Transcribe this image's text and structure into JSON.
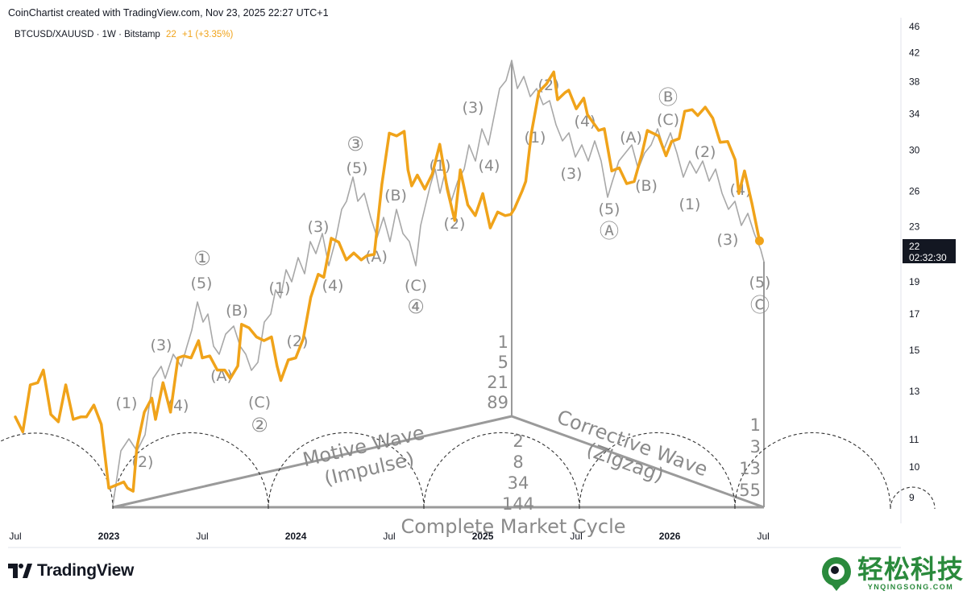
{
  "header": {
    "attribution": "CoinChartist created with TradingView.com, Nov 23, 2025 22:27 UTC+1",
    "symbol": "BTCUSD/XAUUSD · 1W · Bitstamp",
    "last_value": "22",
    "change": "+1 (+3.35%)"
  },
  "price_badge": {
    "value": "22",
    "countdown": "02:32:30"
  },
  "brand": {
    "name": "TradingView"
  },
  "watermark": {
    "cn": "轻松科技",
    "en": "YNQINGSONG.COM"
  },
  "colors": {
    "series": "#f0a31a",
    "overlay": "#9a9a9a",
    "badge": "#131722",
    "watermark": "#2a8a3c"
  },
  "chart_data": {
    "type": "line",
    "title": "BTCUSD/XAUUSD · 1W · Bitstamp",
    "xlabel": "",
    "ylabel": "",
    "y_scale": "log",
    "ylim": [
      8.4,
      47
    ],
    "x_range": [
      "2022-05",
      "2026-11"
    ],
    "y_ticks": [
      46,
      42,
      38,
      34,
      30,
      26,
      23,
      19,
      17,
      15,
      13,
      11,
      10,
      9
    ],
    "x_ticks": [
      {
        "label": "Jul",
        "t": 2022.5,
        "bold": false
      },
      {
        "label": "2023",
        "t": 2023.0,
        "bold": true
      },
      {
        "label": "Jul",
        "t": 2023.5,
        "bold": false
      },
      {
        "label": "2024",
        "t": 2024.0,
        "bold": true
      },
      {
        "label": "Jul",
        "t": 2024.5,
        "bold": false
      },
      {
        "label": "2025",
        "t": 2025.0,
        "bold": true
      },
      {
        "label": "Jul",
        "t": 2025.5,
        "bold": false
      },
      {
        "label": "2026",
        "t": 2026.0,
        "bold": true
      },
      {
        "label": "Jul",
        "t": 2026.5,
        "bold": false
      }
    ],
    "series": [
      {
        "name": "BTCUSD/XAUUSD",
        "color": "#f0a31a",
        "points": [
          [
            2022.5,
            11.9
          ],
          [
            2022.54,
            11.3
          ],
          [
            2022.58,
            13.3
          ],
          [
            2022.62,
            13.4
          ],
          [
            2022.65,
            14.0
          ],
          [
            2022.69,
            12.0
          ],
          [
            2022.73,
            11.7
          ],
          [
            2022.77,
            13.3
          ],
          [
            2022.81,
            11.8
          ],
          [
            2022.85,
            11.9
          ],
          [
            2022.88,
            11.9
          ],
          [
            2022.92,
            12.4
          ],
          [
            2022.96,
            11.6
          ],
          [
            2023.0,
            9.3
          ],
          [
            2023.04,
            9.4
          ],
          [
            2023.08,
            9.5
          ],
          [
            2023.1,
            9.3
          ],
          [
            2023.13,
            9.2
          ],
          [
            2023.15,
            10.7
          ],
          [
            2023.19,
            12.1
          ],
          [
            2023.23,
            12.7
          ],
          [
            2023.25,
            11.8
          ],
          [
            2023.29,
            13.4
          ],
          [
            2023.33,
            12.1
          ],
          [
            2023.37,
            14.6
          ],
          [
            2023.4,
            14.7
          ],
          [
            2023.44,
            14.6
          ],
          [
            2023.48,
            15.5
          ],
          [
            2023.5,
            14.6
          ],
          [
            2023.54,
            14.7
          ],
          [
            2023.58,
            14.0
          ],
          [
            2023.62,
            14.0
          ],
          [
            2023.65,
            13.6
          ],
          [
            2023.69,
            14.2
          ],
          [
            2023.71,
            16.4
          ],
          [
            2023.75,
            16.2
          ],
          [
            2023.79,
            15.7
          ],
          [
            2023.83,
            15.5
          ],
          [
            2023.87,
            15.7
          ],
          [
            2023.9,
            14.2
          ],
          [
            2023.92,
            13.5
          ],
          [
            2023.96,
            14.5
          ],
          [
            2024.0,
            14.6
          ],
          [
            2024.04,
            15.6
          ],
          [
            2024.08,
            18.0
          ],
          [
            2024.12,
            19.5
          ],
          [
            2024.15,
            19.3
          ],
          [
            2024.19,
            22.1
          ],
          [
            2024.23,
            21.8
          ],
          [
            2024.27,
            20.5
          ],
          [
            2024.31,
            21.0
          ],
          [
            2024.35,
            20.5
          ],
          [
            2024.38,
            20.8
          ],
          [
            2024.42,
            20.9
          ],
          [
            2024.46,
            26.6
          ],
          [
            2024.5,
            31.8
          ],
          [
            2024.54,
            31.5
          ],
          [
            2024.58,
            32.0
          ],
          [
            2024.6,
            28.0
          ],
          [
            2024.62,
            26.5
          ],
          [
            2024.65,
            27.5
          ],
          [
            2024.69,
            26.2
          ],
          [
            2024.73,
            27.6
          ],
          [
            2024.77,
            30.6
          ],
          [
            2024.79,
            28.4
          ],
          [
            2024.81,
            26.2
          ],
          [
            2024.85,
            23.5
          ],
          [
            2024.88,
            28.0
          ],
          [
            2024.92,
            24.8
          ],
          [
            2024.96,
            23.9
          ],
          [
            2025.0,
            25.8
          ],
          [
            2025.04,
            22.9
          ],
          [
            2025.08,
            24.2
          ],
          [
            2025.12,
            23.9
          ],
          [
            2025.15,
            24.0
          ],
          [
            2025.17,
            24.5
          ],
          [
            2025.21,
            26.0
          ],
          [
            2025.23,
            26.9
          ],
          [
            2025.26,
            31.8
          ],
          [
            2025.3,
            36.7
          ],
          [
            2025.34,
            37.7
          ],
          [
            2025.38,
            39.3
          ],
          [
            2025.4,
            35.7
          ],
          [
            2025.44,
            36.6
          ],
          [
            2025.46,
            36.9
          ],
          [
            2025.5,
            34.6
          ],
          [
            2025.54,
            35.9
          ],
          [
            2025.56,
            33.9
          ],
          [
            2025.6,
            32.7
          ],
          [
            2025.62,
            32.1
          ],
          [
            2025.65,
            32.3
          ],
          [
            2025.69,
            27.9
          ],
          [
            2025.73,
            28.2
          ],
          [
            2025.77,
            26.7
          ],
          [
            2025.81,
            26.9
          ],
          [
            2025.85,
            29.5
          ],
          [
            2025.88,
            32.1
          ],
          [
            2025.9,
            31.9
          ],
          [
            2025.94,
            31.5
          ],
          [
            2025.98,
            29.4
          ],
          [
            2026.01,
            30.9
          ],
          [
            2026.05,
            31.2
          ],
          [
            2026.08,
            34.3
          ],
          [
            2026.12,
            34.5
          ],
          [
            2026.15,
            33.8
          ],
          [
            2026.19,
            34.8
          ],
          [
            2026.23,
            33.5
          ],
          [
            2026.27,
            30.8
          ],
          [
            2026.31,
            30.9
          ],
          [
            2026.35,
            29.0
          ],
          [
            2026.37,
            25.8
          ],
          [
            2026.4,
            27.9
          ],
          [
            2026.44,
            24.9
          ],
          [
            2026.48,
            21.9
          ]
        ]
      }
    ],
    "overlay": {
      "description": "Elliott wave fractal overlay",
      "wave_labels": [
        "(1)",
        "(2)",
        "(3)",
        "(4)",
        "(5)",
        "①",
        "(A)",
        "(B)",
        "(C)",
        "②",
        "(1)",
        "(2)",
        "(3)",
        "(4)",
        "(5)",
        "③",
        "(A)",
        "(B)",
        "(C)",
        "④",
        "(1)",
        "(2)",
        "(3)",
        "(4)",
        "(1)",
        "(2)",
        "(3)",
        "(4)",
        "(5)",
        "Ⓐ",
        "(A)",
        "(B)",
        "(C)",
        "Ⓑ",
        "(1)",
        "(2)",
        "(3)",
        "(4)",
        "(5)",
        "Ⓒ"
      ],
      "motive_label_1": "Motive Wave",
      "motive_label_2": "(Impulse)",
      "corrective_label_1": "Corrective Wave",
      "corrective_label_2": "(Zigzag)",
      "cycle_label": "Complete Market Cycle",
      "fib_vertical": [
        "1",
        "5",
        "21",
        "89"
      ],
      "fib_center": [
        "2",
        "8",
        "34",
        "144"
      ],
      "fib_right": [
        "1",
        "3",
        "13",
        "55"
      ]
    }
  }
}
